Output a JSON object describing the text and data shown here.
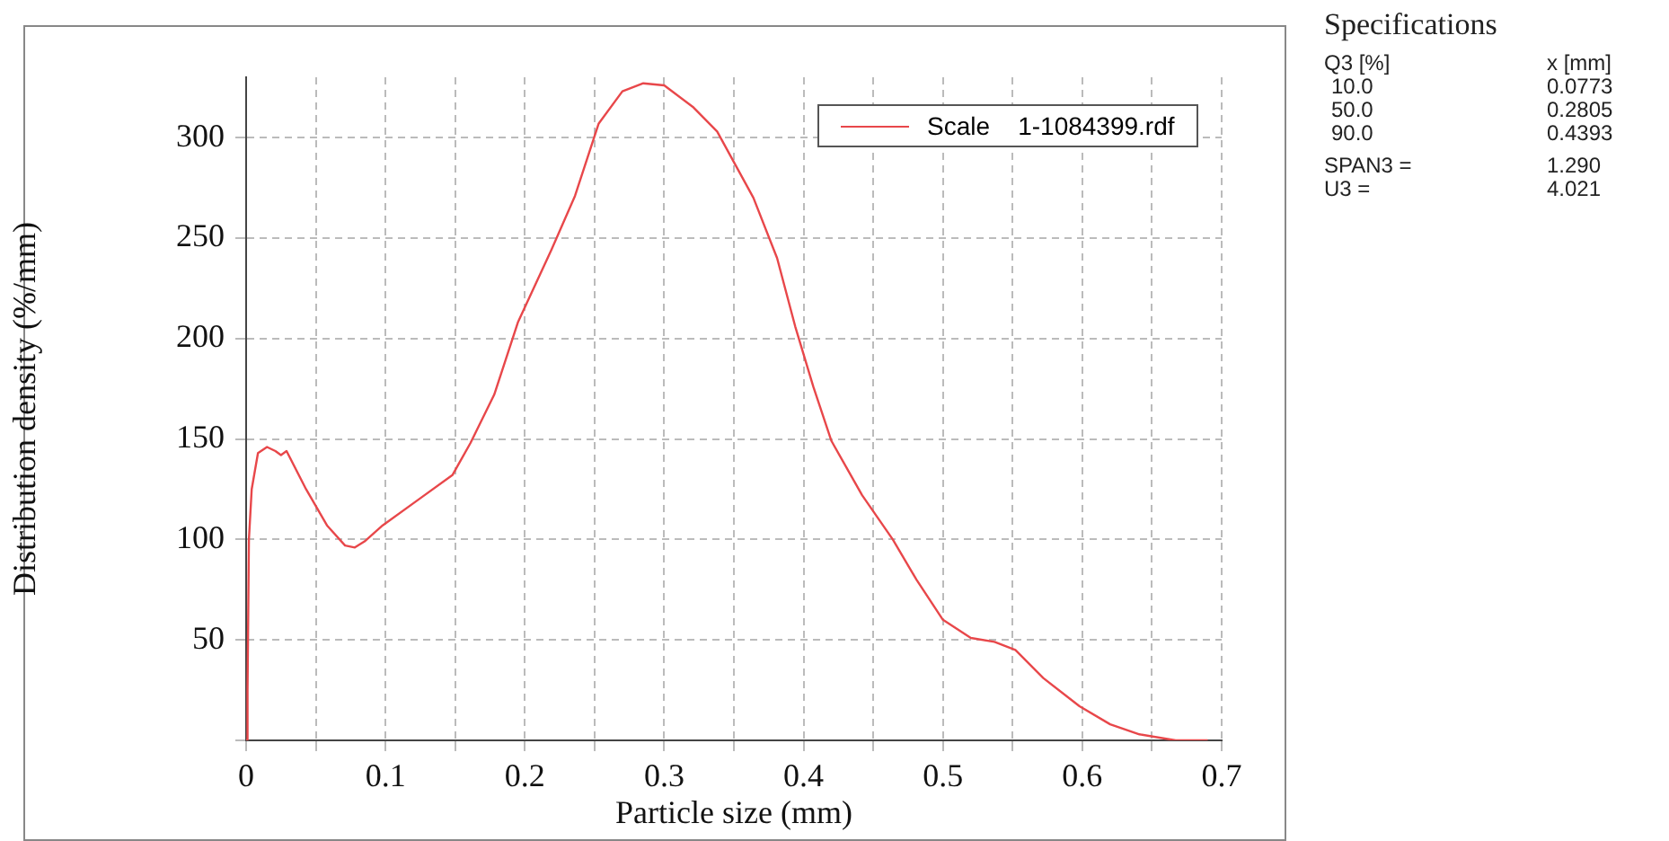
{
  "chart_data": {
    "type": "line",
    "xlabel": "Particle size (mm)",
    "ylabel": "Distribution density (%/mm)",
    "xlim": [
      0,
      0.7
    ],
    "ylim": [
      0,
      330
    ],
    "xticks": [
      0,
      {
        "value": 0.05,
        "label": null
      },
      0.1,
      {
        "value": 0.15,
        "label": null
      },
      0.2,
      {
        "value": 0.25,
        "label": null
      },
      0.3,
      {
        "value": 0.35,
        "label": null
      },
      0.4,
      {
        "value": 0.45,
        "label": null
      },
      0.5,
      {
        "value": 0.55,
        "label": null
      },
      0.6,
      {
        "value": 0.65,
        "label": null
      },
      0.7
    ],
    "yticks": [
      {
        "value": 0,
        "label": null
      },
      50,
      100,
      150,
      200,
      250,
      300
    ],
    "grid": true,
    "legend": "top right",
    "marker": "none",
    "line_style": "solid",
    "series": [
      {
        "name": "Scale    1-1084399.rdf",
        "color": "#e8474a",
        "x": [
          0,
          0.001,
          0.002,
          0.004,
          0.0085,
          0.015,
          0.021,
          0.025,
          0.029,
          0.043,
          0.058,
          0.071,
          0.078,
          0.085,
          0.098,
          0.124,
          0.148,
          0.161,
          0.178,
          0.195,
          0.219,
          0.236,
          0.253,
          0.27,
          0.285,
          0.3,
          0.321,
          0.338,
          0.364,
          0.381,
          0.394,
          0.407,
          0.42,
          0.442,
          0.464,
          0.481,
          0.5,
          0.52,
          0.537,
          0.552,
          0.572,
          0.598,
          0.62,
          0.641,
          0.667,
          0.69
        ],
        "values": [
          0,
          25,
          100,
          125,
          143,
          146,
          144,
          142,
          144,
          125,
          107,
          97,
          96,
          99,
          107,
          120,
          132,
          148,
          172,
          208,
          244,
          271,
          307,
          323,
          327,
          326,
          315,
          303,
          270,
          240,
          206,
          176,
          149,
          122,
          100,
          80,
          60,
          51,
          49,
          45,
          31,
          17,
          8,
          3,
          0,
          0
        ]
      }
    ],
    "annotations": [
      "Specifications",
      "Q3 [%]",
      "x [mm]",
      "10.0",
      "0.0773",
      "50.0",
      "0.2805",
      "90.0",
      "0.4393",
      "SPAN3 =",
      "1.290",
      "U3 =",
      "4.021"
    ]
  }
}
